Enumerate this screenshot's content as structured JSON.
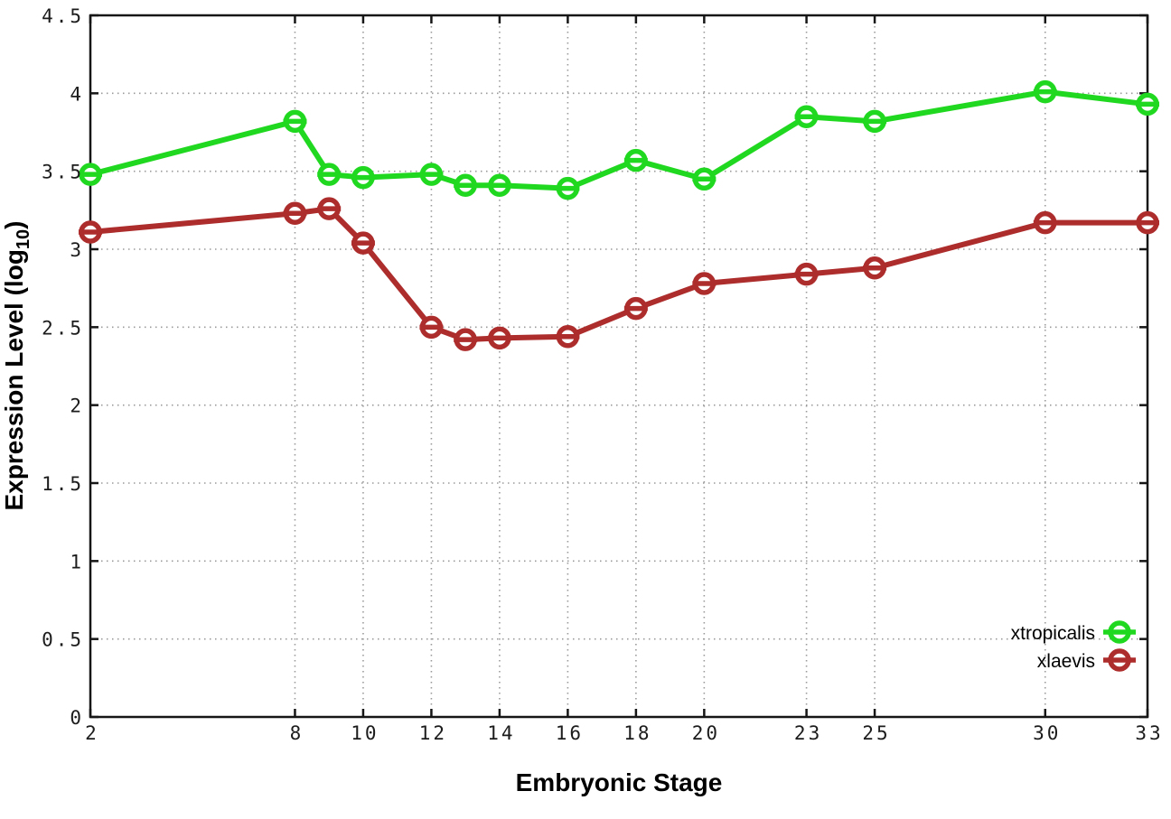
{
  "chart_data": {
    "type": "line",
    "title": "",
    "xlabel": "Embryonic Stage",
    "ylabel": "Expression Level (log10)",
    "ylabel_base": "Expression Level (log",
    "ylabel_subscript": "10",
    "ylabel_suffix": ")",
    "xlim": [
      2,
      33
    ],
    "ylim": [
      0,
      4.5
    ],
    "x_tick_labels": [
      "2",
      "8",
      "10",
      "12",
      "14",
      "16",
      "18",
      "20",
      "23",
      "25",
      "30",
      "33"
    ],
    "y_tick_labels": [
      "0",
      "0.5",
      "1",
      "1.5",
      "2",
      "2.5",
      "3",
      "3.5",
      "4",
      "4.5"
    ],
    "grid": true,
    "legend_position": "bottom-right",
    "x": [
      2,
      8,
      9,
      10,
      12,
      13,
      14,
      16,
      18,
      20,
      23,
      25,
      30,
      33
    ],
    "series": [
      {
        "name": "xtropicalis",
        "color": "#21d821",
        "values": [
          3.48,
          3.82,
          3.48,
          3.46,
          3.48,
          3.41,
          3.41,
          3.39,
          3.57,
          3.45,
          3.85,
          3.82,
          4.01,
          3.93
        ]
      },
      {
        "name": "xlaevis",
        "color": "#ad2c2c",
        "values": [
          3.11,
          3.23,
          3.26,
          3.04,
          2.5,
          2.42,
          2.43,
          2.44,
          2.62,
          2.78,
          2.84,
          2.88,
          3.17,
          3.17
        ]
      }
    ]
  },
  "colors": {
    "frame": "#161616",
    "grid": "#9a9a9a",
    "tick_text": "#1c1c1c",
    "background": "#ffffff"
  }
}
